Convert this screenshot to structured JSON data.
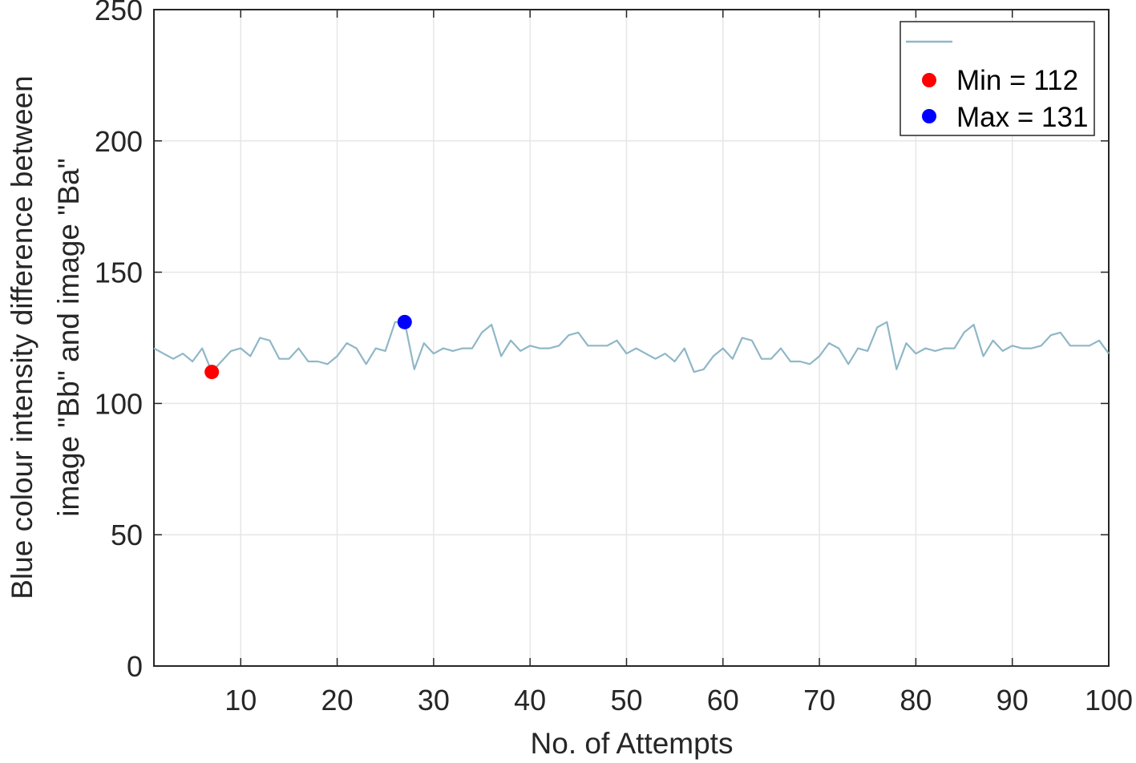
{
  "chart_data": {
    "type": "line",
    "xlabel": "No. of Attempts",
    "ylabel_lines": [
      "Blue colour intensity difference between",
      "image \"Bb\" and image \"Ba\""
    ],
    "xlim": [
      1,
      100
    ],
    "ylim": [
      0,
      250
    ],
    "xticks": [
      10,
      20,
      30,
      40,
      50,
      60,
      70,
      80,
      90,
      100
    ],
    "yticks": [
      0,
      50,
      100,
      150,
      200,
      250
    ],
    "grid": true,
    "legend_position": "top-right",
    "series": [
      {
        "color": "#8fb7c7",
        "x": [
          1,
          2,
          3,
          4,
          5,
          6,
          7,
          8,
          9,
          10,
          11,
          12,
          13,
          14,
          15,
          16,
          17,
          18,
          19,
          20,
          21,
          22,
          23,
          24,
          25,
          26,
          27,
          28,
          29,
          30,
          31,
          32,
          33,
          34,
          35,
          36,
          37,
          38,
          39,
          40,
          41,
          42,
          43,
          44,
          45,
          46,
          47,
          48,
          49,
          50,
          51,
          52,
          53,
          54,
          55,
          56,
          57,
          58,
          59,
          60,
          61,
          62,
          63,
          64,
          65,
          66,
          67,
          68,
          69,
          70,
          71,
          72,
          73,
          74,
          75,
          76,
          77,
          78,
          79,
          80,
          81,
          82,
          83,
          84,
          85,
          86,
          87,
          88,
          89,
          90,
          91,
          92,
          93,
          94,
          95,
          96,
          97,
          98,
          99,
          100
        ],
        "y": [
          121,
          119,
          117,
          119,
          116,
          121,
          112,
          116,
          120,
          121,
          118,
          125,
          124,
          117,
          117,
          121,
          116,
          116,
          115,
          118,
          123,
          121,
          115,
          121,
          120,
          131,
          131,
          113,
          123,
          119,
          121,
          120,
          121,
          121,
          127,
          130,
          118,
          124,
          120,
          122,
          121,
          121,
          122,
          126,
          127,
          122,
          122,
          122,
          124,
          119,
          121,
          119,
          117,
          119,
          116,
          121,
          112,
          113,
          118,
          121,
          117,
          125,
          124,
          117,
          117,
          121,
          116,
          116,
          115,
          118,
          123,
          121,
          115,
          121,
          120,
          129,
          131,
          113,
          123,
          119,
          121,
          120,
          121,
          121,
          127,
          130,
          118,
          124,
          120,
          122,
          121,
          121,
          122,
          126,
          127,
          122,
          122,
          122,
          124,
          119
        ]
      }
    ],
    "markers": [
      {
        "label": "Min = 112",
        "x": 7,
        "y": 112,
        "color": "#ff0000"
      },
      {
        "label": "Max = 131",
        "x": 27,
        "y": 131,
        "color": "#0000ff"
      }
    ]
  }
}
